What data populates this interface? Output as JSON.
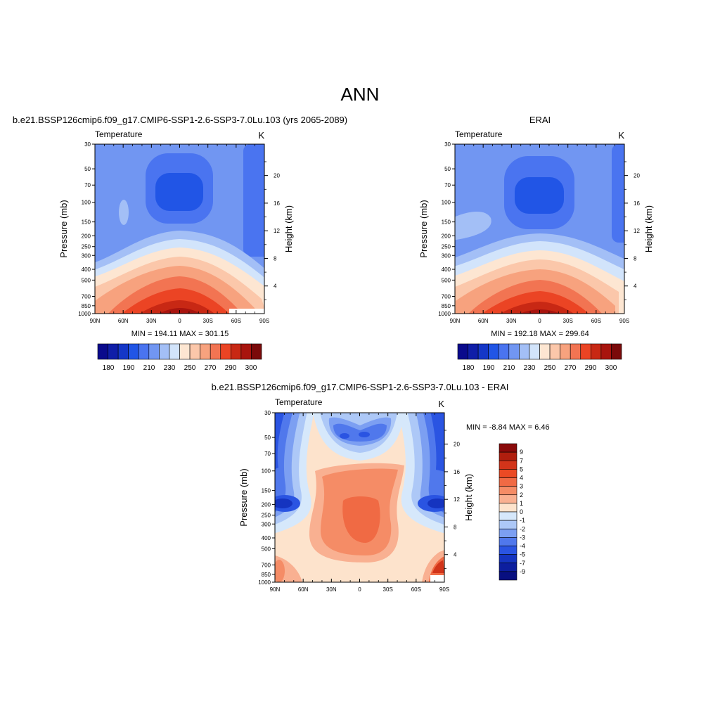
{
  "figure": {
    "title": "ANN"
  },
  "chart_data": [
    {
      "type": "heatmap",
      "panel_title": "b.e21.BSSP126cmip6.f09_g17.CMIP6-SSP1-2.6-SSP3-7.0Lu.103 (yrs 2065-2089)",
      "left_label": "Temperature",
      "right_label": "K",
      "ylabel": "Pressure (mb)",
      "ylabel_right": "Height (km)",
      "xticks": [
        "90N",
        "60N",
        "30N",
        "0",
        "30S",
        "60S",
        "90S"
      ],
      "yticks": [
        "30",
        "50",
        "70",
        "100",
        "150",
        "200",
        "250",
        "300",
        "400",
        "500",
        "700",
        "850",
        "1000"
      ],
      "yticks_right": [
        "20",
        "16",
        "12",
        "8",
        "4"
      ],
      "stats": "MIN = 194.11  MAX = 301.15",
      "min": 194.11,
      "max": 301.15,
      "colorbar_labels": [
        "180",
        "190",
        "210",
        "230",
        "250",
        "270",
        "290",
        "300"
      ],
      "colorbar_colors": [
        "#0a0a8c",
        "#0f1ea8",
        "#1437c8",
        "#2155e6",
        "#4a74f0",
        "#7196f2",
        "#a3bff6",
        "#d2e4fb",
        "#fde6d2",
        "#fbc7aa",
        "#f7a27e",
        "#f27452",
        "#eb4424",
        "#c82814",
        "#a8140e",
        "#7a0a0a"
      ]
    },
    {
      "type": "heatmap",
      "panel_title": "ERAI",
      "left_label": "Temperature",
      "right_label": "K",
      "ylabel": "Pressure (mb)",
      "ylabel_right": "Height (km)",
      "xticks": [
        "90N",
        "60N",
        "30N",
        "0",
        "30S",
        "60S",
        "90S"
      ],
      "yticks": [
        "30",
        "50",
        "70",
        "100",
        "150",
        "200",
        "250",
        "300",
        "400",
        "500",
        "700",
        "850",
        "1000"
      ],
      "yticks_right": [
        "20",
        "16",
        "12",
        "8",
        "4"
      ],
      "stats": "MIN = 192.18  MAX = 299.64",
      "min": 192.18,
      "max": 299.64,
      "colorbar_labels": [
        "180",
        "190",
        "210",
        "230",
        "250",
        "270",
        "290",
        "300"
      ],
      "colorbar_colors": [
        "#0a0a8c",
        "#0f1ea8",
        "#1437c8",
        "#2155e6",
        "#4a74f0",
        "#7196f2",
        "#a3bff6",
        "#d2e4fb",
        "#fde6d2",
        "#fbc7aa",
        "#f7a27e",
        "#f27452",
        "#eb4424",
        "#c82814",
        "#a8140e",
        "#7a0a0a"
      ]
    },
    {
      "type": "heatmap",
      "panel_title": "b.e21.BSSP126cmip6.f09_g17.CMIP6-SSP1-2.6-SSP3-7.0Lu.103 - ERAI",
      "left_label": "Temperature",
      "right_label": "K",
      "ylabel": "Pressure (mb)",
      "ylabel_right": "Height (km)",
      "xticks": [
        "90N",
        "60N",
        "30N",
        "0",
        "30S",
        "60S",
        "90S"
      ],
      "yticks": [
        "30",
        "50",
        "70",
        "100",
        "150",
        "200",
        "250",
        "300",
        "400",
        "500",
        "700",
        "850",
        "1000"
      ],
      "yticks_right": [
        "20",
        "16",
        "12",
        "8",
        "4"
      ],
      "stats": "MIN =  -8.84  MAX =   6.46",
      "min": -8.84,
      "max": 6.46,
      "colorbar_labels": [
        "9",
        "7",
        "5",
        "4",
        "3",
        "2",
        "1",
        "0",
        "-1",
        "-2",
        "-3",
        "-4",
        "-5",
        "-7",
        "-9"
      ],
      "colorbar_colors": [
        "#8a0a0a",
        "#b01e0e",
        "#d2341a",
        "#eb4a24",
        "#f06a44",
        "#f58c66",
        "#f9b091",
        "#fde3cc",
        "#d6e8fb",
        "#adc8f7",
        "#7c9ff2",
        "#5078ec",
        "#2a54e2",
        "#1534c0",
        "#0d1e9e",
        "#080f80"
      ]
    }
  ]
}
